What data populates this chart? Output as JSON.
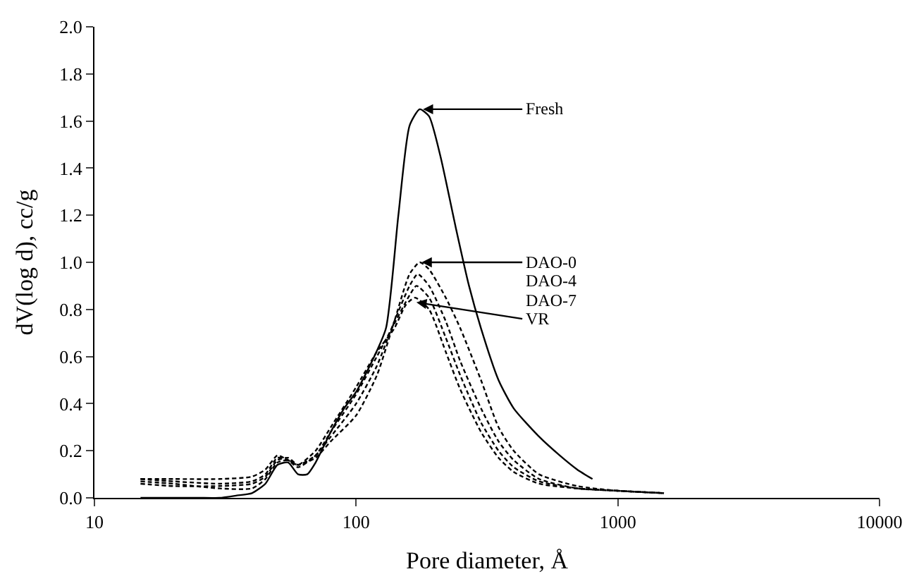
{
  "chart_data": {
    "type": "line",
    "xlabel": "Pore diameter, Å",
    "ylabel": "dV(log d), cc/g",
    "log": "x",
    "grid": false,
    "marker": "none",
    "xlim": [
      10,
      10000
    ],
    "xticks": [
      10,
      100,
      1000,
      10000
    ],
    "ylim": [
      0,
      2.0
    ],
    "yticks": [
      {
        "value": 0,
        "label": "0.0"
      },
      {
        "value": 0.2,
        "label": "0.2"
      },
      {
        "value": 0.4,
        "label": "0.4"
      },
      {
        "value": 0.6,
        "label": "0.6"
      },
      {
        "value": 0.8,
        "label": "0.8"
      },
      {
        "value": 1.0,
        "label": "1.0"
      },
      {
        "value": 1.2,
        "label": "1.2"
      },
      {
        "value": 1.4,
        "label": "1.4"
      },
      {
        "value": 1.6,
        "label": "1.6"
      },
      {
        "value": 1.8,
        "label": "1.8"
      },
      {
        "value": 2.0,
        "label": "2.0"
      }
    ],
    "series": [
      {
        "color": "#000000",
        "line_style": "solid",
        "x": [
          15,
          20,
          25,
          30,
          35,
          40,
          45,
          50,
          55,
          60,
          65,
          70,
          80,
          90,
          100,
          115,
          130,
          145,
          160,
          175,
          190,
          210,
          240,
          270,
          300,
          350,
          400,
          500,
          600,
          700,
          800
        ],
        "values": [
          0.0,
          0.0,
          0.0,
          0.0,
          0.01,
          0.02,
          0.06,
          0.14,
          0.15,
          0.1,
          0.1,
          0.15,
          0.28,
          0.38,
          0.45,
          0.58,
          0.72,
          1.2,
          1.58,
          1.65,
          1.62,
          1.45,
          1.15,
          0.9,
          0.72,
          0.5,
          0.38,
          0.26,
          0.18,
          0.12,
          0.08
        ]
      },
      {
        "color": "#000000",
        "line_style": "dashed",
        "x": [
          15,
          20,
          30,
          40,
          45,
          50,
          55,
          60,
          70,
          80,
          100,
          120,
          140,
          160,
          175,
          190,
          220,
          250,
          300,
          350,
          400,
          500,
          700,
          1000,
          1500
        ],
        "values": [
          0.07,
          0.06,
          0.04,
          0.04,
          0.08,
          0.15,
          0.16,
          0.14,
          0.17,
          0.24,
          0.35,
          0.52,
          0.75,
          0.95,
          1.0,
          0.97,
          0.85,
          0.72,
          0.5,
          0.3,
          0.2,
          0.1,
          0.05,
          0.03,
          0.02
        ]
      },
      {
        "color": "#000000",
        "line_style": "dashed",
        "x": [
          15,
          20,
          30,
          40,
          45,
          50,
          55,
          60,
          70,
          80,
          100,
          120,
          140,
          160,
          172,
          190,
          220,
          250,
          300,
          350,
          400,
          500,
          700,
          1000,
          1500
        ],
        "values": [
          0.06,
          0.05,
          0.05,
          0.06,
          0.09,
          0.16,
          0.17,
          0.14,
          0.18,
          0.26,
          0.4,
          0.56,
          0.75,
          0.9,
          0.95,
          0.9,
          0.75,
          0.58,
          0.38,
          0.24,
          0.16,
          0.08,
          0.04,
          0.03,
          0.02
        ]
      },
      {
        "color": "#000000",
        "line_style": "dashed",
        "x": [
          15,
          20,
          30,
          40,
          45,
          50,
          55,
          60,
          70,
          80,
          100,
          120,
          140,
          160,
          170,
          190,
          220,
          250,
          300,
          350,
          400,
          500,
          700,
          1000,
          1500
        ],
        "values": [
          0.08,
          0.07,
          0.06,
          0.07,
          0.1,
          0.17,
          0.16,
          0.13,
          0.18,
          0.28,
          0.44,
          0.6,
          0.74,
          0.86,
          0.9,
          0.85,
          0.68,
          0.52,
          0.32,
          0.2,
          0.13,
          0.07,
          0.04,
          0.03,
          0.02
        ]
      },
      {
        "color": "#000000",
        "line_style": "dashed",
        "x": [
          15,
          20,
          30,
          40,
          45,
          50,
          55,
          60,
          70,
          80,
          100,
          120,
          140,
          155,
          168,
          190,
          220,
          250,
          300,
          350,
          400,
          500,
          700,
          1000,
          1500
        ],
        "values": [
          0.08,
          0.08,
          0.08,
          0.09,
          0.12,
          0.18,
          0.16,
          0.14,
          0.2,
          0.3,
          0.47,
          0.62,
          0.72,
          0.82,
          0.85,
          0.8,
          0.62,
          0.46,
          0.28,
          0.17,
          0.11,
          0.06,
          0.04,
          0.03,
          0.02
        ]
      }
    ],
    "annotations": [
      {
        "text": "Fresh",
        "x": 180,
        "y": 1.65
      },
      {
        "text": "DAO-0",
        "x": 178,
        "y": 1.0
      },
      "DAO-4",
      "DAO-7",
      {
        "text": "VR",
        "x": 170,
        "y": 0.83
      }
    ]
  }
}
